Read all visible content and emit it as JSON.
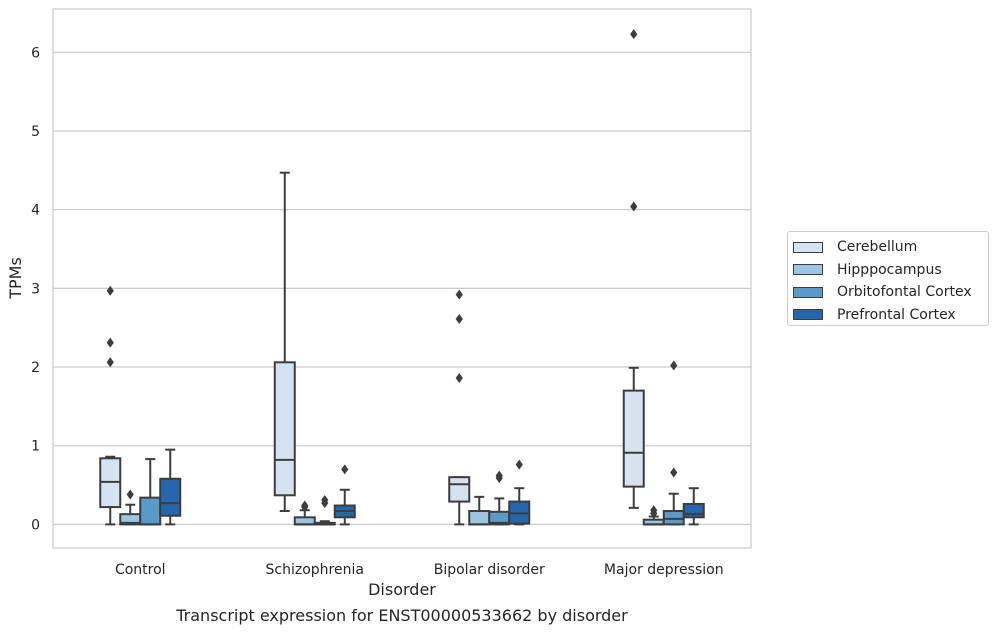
{
  "chart_data": {
    "type": "boxplot",
    "caption": "Transcript expression for ENST00000533662 by disorder",
    "xlabel": "Disorder",
    "ylabel": "TPMs",
    "ylim": [
      -0.3,
      6.55
    ],
    "yticks": [
      0,
      1,
      2,
      3,
      4,
      5,
      6
    ],
    "grid": true,
    "legend_position": "right",
    "categories": [
      "Control",
      "Schizophrenia",
      "Bipolar disorder",
      "Major depression"
    ],
    "series": [
      {
        "name": "Cerebellum",
        "color": "#d5e3f1",
        "boxes": [
          {
            "whislo": 0.0,
            "q1": 0.22,
            "med": 0.54,
            "q3": 0.84,
            "whishi": 0.86,
            "fliers": [
              2.06,
              2.31,
              2.97
            ]
          },
          {
            "whislo": 0.17,
            "q1": 0.37,
            "med": 0.82,
            "q3": 2.06,
            "whishi": 4.47,
            "fliers": []
          },
          {
            "whislo": 0.0,
            "q1": 0.29,
            "med": 0.51,
            "q3": 0.6,
            "whishi": 0.6,
            "fliers": [
              1.86,
              2.61,
              2.92
            ]
          },
          {
            "whislo": 0.21,
            "q1": 0.48,
            "med": 0.91,
            "q3": 1.7,
            "whishi": 1.99,
            "fliers": [
              4.04,
              6.23
            ]
          }
        ]
      },
      {
        "name": "Hipppocampus",
        "color": "#9dc4e0",
        "boxes": [
          {
            "whislo": 0.0,
            "q1": 0.0,
            "med": 0.02,
            "q3": 0.13,
            "whishi": 0.25,
            "fliers": [
              0.38
            ]
          },
          {
            "whislo": 0.0,
            "q1": 0.0,
            "med": 0.0,
            "q3": 0.09,
            "whishi": 0.18,
            "fliers": [
              0.22,
              0.24
            ]
          },
          {
            "whislo": 0.0,
            "q1": 0.0,
            "med": 0.0,
            "q3": 0.17,
            "whishi": 0.35,
            "fliers": []
          },
          {
            "whislo": 0.0,
            "q1": 0.0,
            "med": 0.0,
            "q3": 0.06,
            "whishi": 0.1,
            "fliers": [
              0.14,
              0.18
            ]
          }
        ]
      },
      {
        "name": "Orbitofontal Cortex",
        "color": "#5a9ac8",
        "boxes": [
          {
            "whislo": 0.0,
            "q1": 0.0,
            "med": 0.0,
            "q3": 0.34,
            "whishi": 0.83,
            "fliers": []
          },
          {
            "whislo": 0.0,
            "q1": 0.0,
            "med": 0.0,
            "q3": 0.02,
            "whishi": 0.04,
            "fliers": [
              0.27,
              0.31
            ]
          },
          {
            "whislo": 0.0,
            "q1": 0.0,
            "med": 0.02,
            "q3": 0.16,
            "whishi": 0.33,
            "fliers": [
              0.59,
              0.62
            ]
          },
          {
            "whislo": 0.0,
            "q1": 0.0,
            "med": 0.07,
            "q3": 0.17,
            "whishi": 0.39,
            "fliers": [
              0.66,
              2.02
            ]
          }
        ]
      },
      {
        "name": "Prefrontal Cortex",
        "color": "#2567ad",
        "boxes": [
          {
            "whislo": 0.0,
            "q1": 0.11,
            "med": 0.27,
            "q3": 0.58,
            "whishi": 0.95,
            "fliers": []
          },
          {
            "whislo": 0.0,
            "q1": 0.09,
            "med": 0.17,
            "q3": 0.24,
            "whishi": 0.44,
            "fliers": [
              0.7
            ]
          },
          {
            "whislo": 0.0,
            "q1": 0.01,
            "med": 0.14,
            "q3": 0.29,
            "whishi": 0.46,
            "fliers": [
              0.76
            ]
          },
          {
            "whislo": 0.0,
            "q1": 0.09,
            "med": 0.13,
            "q3": 0.26,
            "whishi": 0.46,
            "fliers": []
          }
        ]
      }
    ]
  }
}
